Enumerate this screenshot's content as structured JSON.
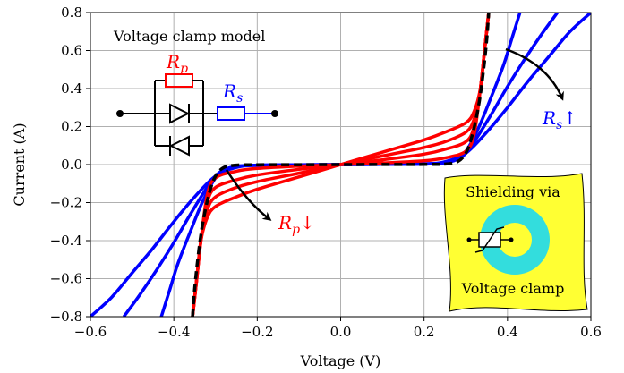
{
  "chart_data": {
    "type": "line",
    "xlabel": "Voltage (V)",
    "ylabel": "Current (A)",
    "xlim": [
      -0.6,
      0.6
    ],
    "ylim": [
      -0.8,
      0.8
    ],
    "grid": true,
    "x_ticks": [
      -0.6,
      -0.4,
      -0.2,
      0.0,
      0.2,
      0.4,
      0.6
    ],
    "x_tick_labels": [
      "−0.6",
      "−0.4",
      "−0.2",
      "0.0",
      "0.2",
      "0.4",
      "0.6"
    ],
    "y_ticks": [
      -0.8,
      -0.6,
      -0.4,
      -0.2,
      0.0,
      0.2,
      0.4,
      0.6,
      0.8
    ],
    "y_tick_labels": [
      "−0.8",
      "−0.6",
      "−0.4",
      "−0.2",
      "0.0",
      "0.2",
      "0.4",
      "0.6",
      "0.8"
    ],
    "series": [
      {
        "color": "#0000ff",
        "style": "solid",
        "points": [
          [
            -0.6,
            -0.8
          ],
          [
            -0.55,
            -0.7
          ],
          [
            -0.5,
            -0.57
          ],
          [
            -0.45,
            -0.44
          ],
          [
            -0.4,
            -0.3
          ],
          [
            -0.35,
            -0.17
          ],
          [
            -0.3,
            -0.06
          ],
          [
            -0.25,
            -0.015
          ],
          [
            -0.2,
            -0.004
          ],
          [
            -0.1,
            -0.001
          ],
          [
            0,
            0
          ],
          [
            0.1,
            0.001
          ],
          [
            0.2,
            0.004
          ],
          [
            0.25,
            0.015
          ],
          [
            0.3,
            0.06
          ],
          [
            0.35,
            0.17
          ],
          [
            0.4,
            0.3
          ],
          [
            0.45,
            0.44
          ],
          [
            0.5,
            0.57
          ],
          [
            0.55,
            0.7
          ],
          [
            0.6,
            0.8
          ]
        ]
      },
      {
        "color": "#0000ff",
        "style": "solid",
        "points": [
          [
            -0.52,
            -0.8
          ],
          [
            -0.48,
            -0.68
          ],
          [
            -0.44,
            -0.55
          ],
          [
            -0.4,
            -0.41
          ],
          [
            -0.36,
            -0.26
          ],
          [
            -0.32,
            -0.12
          ],
          [
            -0.29,
            -0.04
          ],
          [
            -0.25,
            -0.01
          ],
          [
            -0.2,
            -0.003
          ],
          [
            -0.1,
            -0.001
          ],
          [
            0,
            0
          ],
          [
            0.1,
            0.001
          ],
          [
            0.2,
            0.003
          ],
          [
            0.25,
            0.01
          ],
          [
            0.29,
            0.04
          ],
          [
            0.32,
            0.12
          ],
          [
            0.36,
            0.26
          ],
          [
            0.4,
            0.41
          ],
          [
            0.44,
            0.55
          ],
          [
            0.48,
            0.68
          ],
          [
            0.52,
            0.8
          ]
        ]
      },
      {
        "color": "#0000ff",
        "style": "solid",
        "points": [
          [
            -0.43,
            -0.8
          ],
          [
            -0.41,
            -0.66
          ],
          [
            -0.39,
            -0.52
          ],
          [
            -0.36,
            -0.35
          ],
          [
            -0.33,
            -0.19
          ],
          [
            -0.3,
            -0.07
          ],
          [
            -0.27,
            -0.02
          ],
          [
            -0.23,
            -0.006
          ],
          [
            -0.15,
            -0.002
          ],
          [
            0,
            0
          ],
          [
            0.15,
            0.002
          ],
          [
            0.23,
            0.006
          ],
          [
            0.27,
            0.02
          ],
          [
            0.3,
            0.07
          ],
          [
            0.33,
            0.19
          ],
          [
            0.36,
            0.35
          ],
          [
            0.39,
            0.52
          ],
          [
            0.41,
            0.66
          ],
          [
            0.43,
            0.8
          ]
        ]
      },
      {
        "color": "#ff0000",
        "style": "solid",
        "points": [
          [
            -0.355,
            -0.8
          ],
          [
            -0.345,
            -0.6
          ],
          [
            -0.335,
            -0.4
          ],
          [
            -0.32,
            -0.28
          ],
          [
            -0.3,
            -0.22
          ],
          [
            -0.25,
            -0.17
          ],
          [
            -0.2,
            -0.13
          ],
          [
            -0.1,
            -0.065
          ],
          [
            0,
            0
          ],
          [
            0.1,
            0.065
          ],
          [
            0.2,
            0.13
          ],
          [
            0.25,
            0.17
          ],
          [
            0.3,
            0.22
          ],
          [
            0.32,
            0.28
          ],
          [
            0.335,
            0.4
          ],
          [
            0.345,
            0.6
          ],
          [
            0.355,
            0.8
          ]
        ]
      },
      {
        "color": "#ff0000",
        "style": "solid",
        "points": [
          [
            -0.355,
            -0.8
          ],
          [
            -0.345,
            -0.6
          ],
          [
            -0.335,
            -0.4
          ],
          [
            -0.32,
            -0.24
          ],
          [
            -0.3,
            -0.17
          ],
          [
            -0.25,
            -0.12
          ],
          [
            -0.2,
            -0.09
          ],
          [
            -0.1,
            -0.045
          ],
          [
            0,
            0
          ],
          [
            0.1,
            0.045
          ],
          [
            0.2,
            0.09
          ],
          [
            0.25,
            0.12
          ],
          [
            0.3,
            0.17
          ],
          [
            0.32,
            0.24
          ],
          [
            0.335,
            0.4
          ],
          [
            0.345,
            0.6
          ],
          [
            0.355,
            0.8
          ]
        ]
      },
      {
        "color": "#ff0000",
        "style": "solid",
        "points": [
          [
            -0.355,
            -0.8
          ],
          [
            -0.345,
            -0.6
          ],
          [
            -0.335,
            -0.4
          ],
          [
            -0.32,
            -0.2
          ],
          [
            -0.3,
            -0.12
          ],
          [
            -0.25,
            -0.08
          ],
          [
            -0.2,
            -0.055
          ],
          [
            -0.1,
            -0.025
          ],
          [
            0,
            0
          ],
          [
            0.1,
            0.025
          ],
          [
            0.2,
            0.055
          ],
          [
            0.25,
            0.08
          ],
          [
            0.3,
            0.12
          ],
          [
            0.32,
            0.2
          ],
          [
            0.335,
            0.4
          ],
          [
            0.345,
            0.6
          ],
          [
            0.355,
            0.8
          ]
        ]
      },
      {
        "color": "#ff0000",
        "style": "solid",
        "points": [
          [
            -0.355,
            -0.8
          ],
          [
            -0.345,
            -0.6
          ],
          [
            -0.335,
            -0.4
          ],
          [
            -0.32,
            -0.16
          ],
          [
            -0.3,
            -0.07
          ],
          [
            -0.25,
            -0.035
          ],
          [
            -0.2,
            -0.02
          ],
          [
            -0.1,
            -0.008
          ],
          [
            0,
            0
          ],
          [
            0.1,
            0.008
          ],
          [
            0.2,
            0.02
          ],
          [
            0.25,
            0.035
          ],
          [
            0.3,
            0.07
          ],
          [
            0.32,
            0.16
          ],
          [
            0.335,
            0.4
          ],
          [
            0.345,
            0.6
          ],
          [
            0.355,
            0.8
          ]
        ]
      },
      {
        "color": "#000000",
        "style": "dashed",
        "points": [
          [
            -0.355,
            -0.8
          ],
          [
            -0.35,
            -0.65
          ],
          [
            -0.34,
            -0.45
          ],
          [
            -0.33,
            -0.3
          ],
          [
            -0.315,
            -0.15
          ],
          [
            -0.3,
            -0.06
          ],
          [
            -0.28,
            -0.015
          ],
          [
            -0.25,
            -0.003
          ],
          [
            -0.2,
            -0.001
          ],
          [
            0,
            0
          ],
          [
            0.2,
            0.001
          ],
          [
            0.25,
            0.003
          ],
          [
            0.28,
            0.015
          ],
          [
            0.3,
            0.06
          ],
          [
            0.315,
            0.15
          ],
          [
            0.33,
            0.3
          ],
          [
            0.34,
            0.45
          ],
          [
            0.35,
            0.65
          ],
          [
            0.355,
            0.8
          ]
        ]
      }
    ],
    "annotations": {
      "model_label": "Voltage clamp model",
      "rp_letter": "R",
      "rp_sub": "p",
      "rs_letter": "R",
      "rs_sub": "s",
      "rs_arrow_label": "↑",
      "rp_arrow_label": "↓",
      "inset_top": "Shielding via",
      "inset_bottom": "Voltage clamp"
    },
    "colors": {
      "red": "#ff0000",
      "blue": "#0000ff",
      "black": "#000000",
      "inset_bg": "#ffff33",
      "ring": "#33dddd",
      "grid": "#b0b0b0"
    }
  }
}
